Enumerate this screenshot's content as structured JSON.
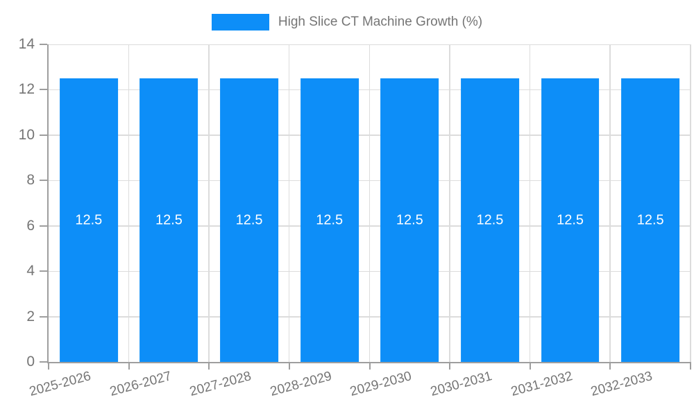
{
  "chart_data": {
    "type": "bar",
    "title": "High Slice CT Machine Growth (%)",
    "legend": {
      "label": "High Slice CT Machine Growth (%)",
      "position": "top-center"
    },
    "categories": [
      "2025-2026",
      "2026-2027",
      "2027-2028",
      "2028-2029",
      "2029-2030",
      "2030-2031",
      "2031-2032",
      "2032-2033"
    ],
    "values": [
      12.5,
      12.5,
      12.5,
      12.5,
      12.5,
      12.5,
      12.5,
      12.5
    ],
    "bar_labels": [
      "12.5",
      "12.5",
      "12.5",
      "12.5",
      "12.5",
      "12.5",
      "12.5",
      "12.5"
    ],
    "xlabel": "",
    "ylabel": "",
    "ylim": [
      0,
      14
    ],
    "yticks": [
      0,
      2,
      4,
      6,
      8,
      10,
      12,
      14
    ],
    "grid": true,
    "x_tick_label_rotation_deg": -15
  },
  "colors": {
    "bar": "#0D8EF8",
    "axis": "#9E9E9E",
    "grid": "#DCDCDC",
    "tick_label_text": "#757575",
    "legend_text": "#757575",
    "bar_value_text": "#FFFFFF",
    "background": "#FFFFFF"
  }
}
